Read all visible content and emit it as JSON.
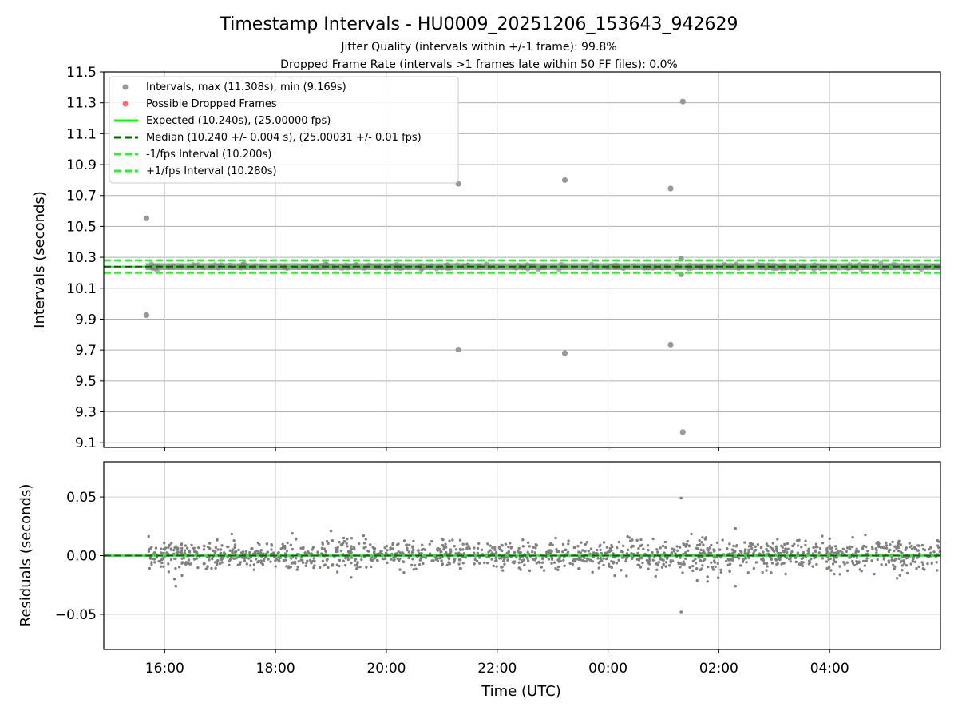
{
  "figure": {
    "title": "Timestamp Intervals - HU0009_20251206_153643_942629",
    "subtitle_1": "Jitter Quality (intervals within +/-1 frame): 99.8%",
    "subtitle_2": "Dropped Frame Rate (intervals >1 frames late within 50 FF files): 0.0%",
    "xlabel": "Time (UTC)"
  },
  "colors": {
    "points": "#808080",
    "dropped": "#ff4d4d",
    "expected": "#00ff00",
    "median": "#006400",
    "band": "#1aff1a",
    "grid": "#b0b0b0"
  },
  "chart_data": [
    {
      "type": "scatter",
      "panel": "top",
      "ylabel": "Intervals (seconds)",
      "xlim": [
        -9.1,
        6.0
      ],
      "ylim": [
        9.07,
        11.5
      ],
      "yticks": [
        9.1,
        9.3,
        9.5,
        9.7,
        9.9,
        10.1,
        10.3,
        10.5,
        10.7,
        10.9,
        11.1,
        11.3,
        11.5
      ],
      "ytick_labels": [
        "9.1",
        "9.3",
        "9.5",
        "9.7",
        "9.9",
        "10.1",
        "10.3",
        "10.5",
        "10.7",
        "10.9",
        "11.1",
        "11.3",
        "11.5"
      ],
      "grid": true,
      "legend_position": "top-left",
      "legend": [
        {
          "label": "Intervals, max (11.308s), min (9.169s)",
          "kind": "marker",
          "color": "#999999"
        },
        {
          "label": "Possible Dropped Frames",
          "kind": "marker",
          "color": "#ff6666"
        },
        {
          "label": "Expected (10.240s), (25.00000 fps)",
          "kind": "line",
          "color": "#00ff00"
        },
        {
          "label": "Median (10.240 +/- 0.004 s), (25.00031 +/- 0.01 fps)",
          "kind": "dashed",
          "color": "#006400"
        },
        {
          "label": "-1/fps Interval (10.200s)",
          "kind": "dashed",
          "color": "#1aff1a"
        },
        {
          "label": "+1/fps Interval (10.280s)",
          "kind": "dashed",
          "color": "#1aff1a"
        }
      ],
      "lines": {
        "expected": 10.24,
        "median": 10.24,
        "minus_1fps": 10.2,
        "plus_1fps": 10.28
      },
      "data_span": [
        -8.3,
        6.0
      ],
      "outliers": [
        {
          "x": -8.33,
          "y": 10.552
        },
        {
          "x": -8.33,
          "y": 9.926
        },
        {
          "x": -2.7,
          "y": 10.776
        },
        {
          "x": -2.7,
          "y": 9.703
        },
        {
          "x": -0.78,
          "y": 10.8
        },
        {
          "x": -0.78,
          "y": 9.68
        },
        {
          "x": 1.13,
          "y": 10.745
        },
        {
          "x": 1.13,
          "y": 9.735
        },
        {
          "x": 1.35,
          "y": 11.308
        },
        {
          "x": 1.35,
          "y": 9.169
        },
        {
          "x": 1.32,
          "y": 10.29
        },
        {
          "x": 1.32,
          "y": 10.19
        }
      ]
    },
    {
      "type": "scatter",
      "panel": "bottom",
      "ylabel": "Residuals (seconds)",
      "xlabel": "Time (UTC)",
      "xlim": [
        -9.1,
        6.0
      ],
      "ylim": [
        -0.08,
        0.08
      ],
      "yticks": [
        -0.05,
        0.0,
        0.05
      ],
      "ytick_labels": [
        "−0.05",
        "0.00",
        "0.05"
      ],
      "xticks": [
        -8,
        -6,
        -4,
        -2,
        0,
        2,
        4
      ],
      "xtick_labels": [
        "16:00",
        "18:00",
        "20:00",
        "22:00",
        "00:00",
        "02:00",
        "04:00"
      ],
      "grid": true,
      "zero_line": 0.0,
      "data_span": [
        -8.3,
        6.0
      ],
      "residual_sigma": 0.006,
      "outliers": [
        {
          "x": 1.32,
          "y": 0.049
        },
        {
          "x": 1.32,
          "y": -0.048
        },
        {
          "x": -7.8,
          "y": -0.026
        },
        {
          "x": 2.3,
          "y": -0.026
        },
        {
          "x": -5.0,
          "y": 0.021
        },
        {
          "x": 2.3,
          "y": 0.023
        }
      ]
    }
  ]
}
